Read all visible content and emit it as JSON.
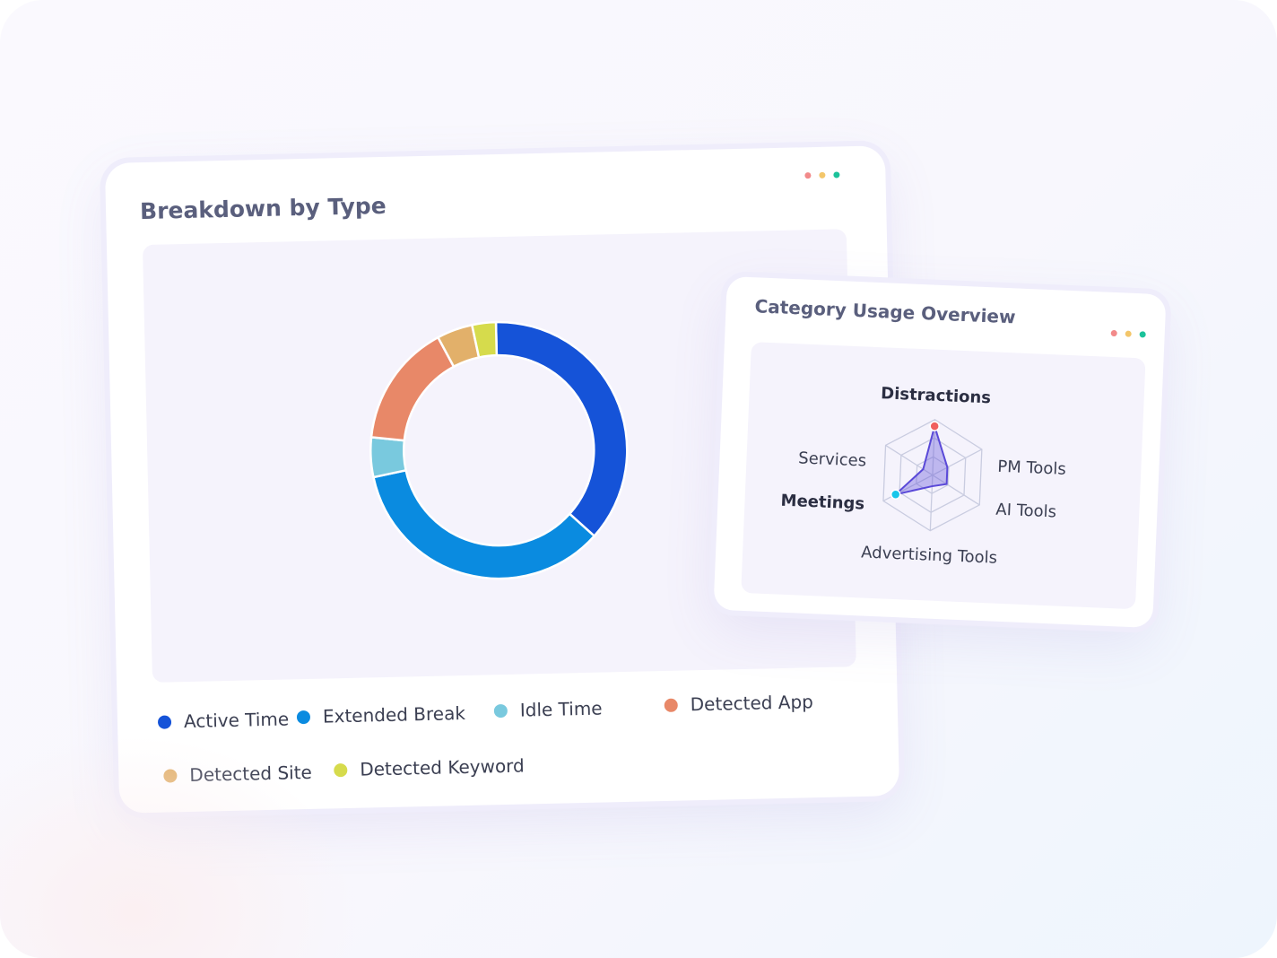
{
  "chart_data": [
    {
      "type": "donut",
      "title": "Breakdown by Type",
      "categories": [
        "Active Time",
        "Extended Break",
        "Idle Time",
        "Detected App",
        "Detected Site",
        "Detected Keyword"
      ],
      "values": [
        37,
        35,
        5,
        15.5,
        4.5,
        3
      ],
      "colors": [
        "#1553d8",
        "#0a8be0",
        "#79c9de",
        "#e88868",
        "#e2b06a",
        "#d6db4c"
      ]
    },
    {
      "type": "radar",
      "title": "Category Usage Overview",
      "categories": [
        "Distractions",
        "PM Tools",
        "AI Tools",
        "Advertising Tools",
        "Meetings",
        "Services"
      ],
      "values": [
        88,
        30,
        30,
        20,
        75,
        20
      ],
      "rlim": [
        0,
        100
      ],
      "rticks": [
        33,
        67,
        100
      ],
      "grid": true,
      "color": "#5a49d8",
      "markers": [
        {
          "index": 0,
          "color": "#f0605e"
        },
        {
          "index": 4,
          "color": "#18c6ea"
        }
      ]
    }
  ]
}
